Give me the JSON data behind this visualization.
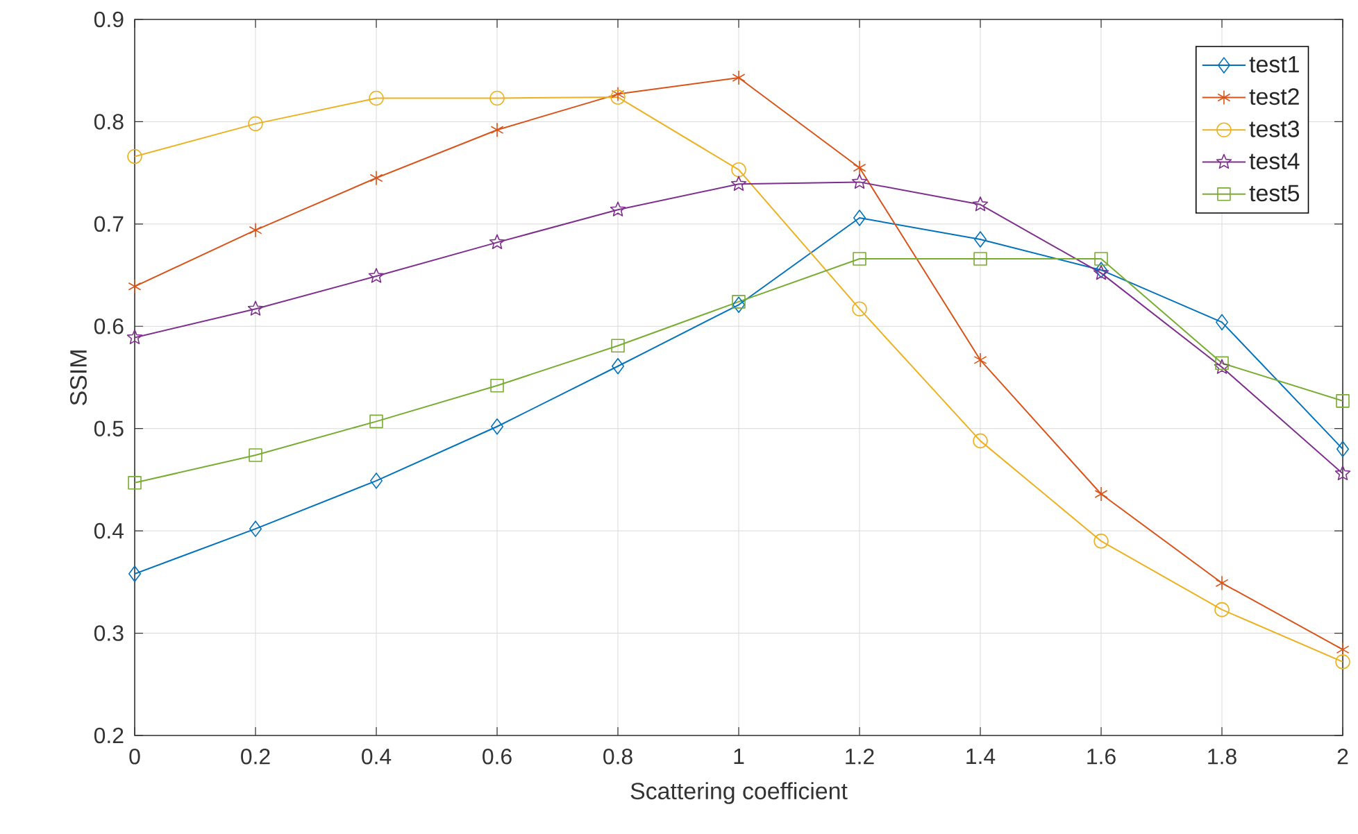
{
  "chart_data": {
    "type": "line",
    "xlabel": "Scattering coefficient",
    "ylabel": "SSIM",
    "x": [
      0,
      0.2,
      0.4,
      0.6,
      0.8,
      1,
      1.2,
      1.4,
      1.6,
      1.8,
      2
    ],
    "xlim": [
      0,
      2
    ],
    "ylim": [
      0.2,
      0.9
    ],
    "xticks": [
      0,
      0.2,
      0.4,
      0.6,
      0.8,
      1,
      1.2,
      1.4,
      1.6,
      1.8,
      2
    ],
    "yticks": [
      0.2,
      0.3,
      0.4,
      0.5,
      0.6,
      0.7,
      0.8,
      0.9
    ],
    "grid": true,
    "legend": "top right",
    "line_style": "solid",
    "series": [
      {
        "name": "test1",
        "color": "#0072bd",
        "marker": "diamond",
        "values": [
          0.358,
          0.402,
          0.449,
          0.502,
          0.561,
          0.621,
          0.706,
          0.685,
          0.655,
          0.604,
          0.48
        ]
      },
      {
        "name": "test2",
        "color": "#d95319",
        "marker": "cross",
        "values": [
          0.639,
          0.694,
          0.745,
          0.792,
          0.827,
          0.843,
          0.755,
          0.567,
          0.436,
          0.349,
          0.284
        ]
      },
      {
        "name": "test3",
        "color": "#edb120",
        "marker": "circle",
        "values": [
          0.766,
          0.798,
          0.823,
          0.823,
          0.824,
          0.753,
          0.617,
          0.488,
          0.39,
          0.323,
          0.272
        ]
      },
      {
        "name": "test4",
        "color": "#7e2f8e",
        "marker": "star",
        "values": [
          0.589,
          0.617,
          0.649,
          0.682,
          0.714,
          0.739,
          0.741,
          0.719,
          0.652,
          0.56,
          0.456
        ]
      },
      {
        "name": "test5",
        "color": "#77ac30",
        "marker": "square",
        "values": [
          0.447,
          0.474,
          0.507,
          0.542,
          0.581,
          0.624,
          0.666,
          0.666,
          0.666,
          0.564,
          0.527
        ]
      }
    ]
  }
}
